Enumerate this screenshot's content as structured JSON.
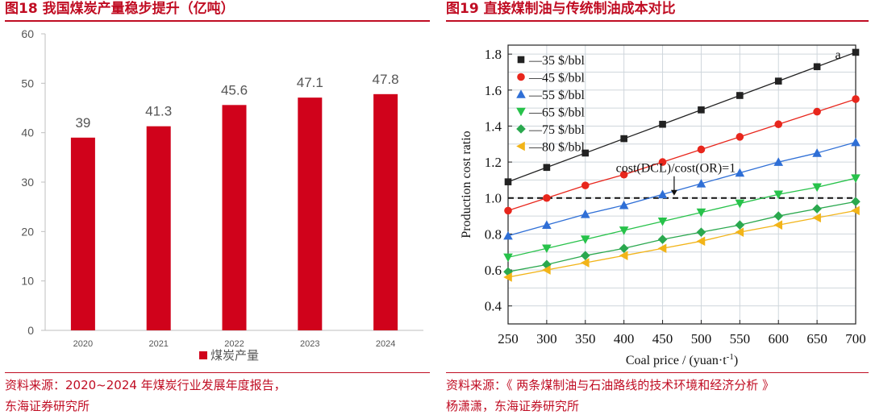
{
  "left_figure": {
    "title": "图18 我国煤炭产量稳步提升（亿吨）",
    "source_line1": "资料来源：2020~2024 年煤炭行业发展年度报告，",
    "source_line2": "东海证券研究所"
  },
  "right_figure": {
    "title": "图19 直接煤制油与传统制油成本对比",
    "source_line1": "资料来源：《 两条煤制油与石油路线的技术环境和经济分析 》",
    "source_line2": "杨潇潇，东海证券研究所"
  },
  "colors": {
    "accent": "#c00d23",
    "bar": "#d0021b"
  },
  "chart_data": [
    {
      "type": "bar",
      "title": "我国煤炭产量稳步提升（亿吨）",
      "categories": [
        "2020",
        "2021",
        "2022",
        "2023",
        "2024"
      ],
      "values": [
        39,
        41.3,
        45.6,
        47.1,
        47.8
      ],
      "value_labels": [
        "39",
        "41.3",
        "45.6",
        "47.1",
        "47.8"
      ],
      "series_name": "煤炭产量",
      "ylim": [
        0,
        60
      ],
      "yticks": [
        0,
        10,
        20,
        30,
        40,
        50,
        60
      ],
      "legend_position": "bottom",
      "grid": false
    },
    {
      "type": "line",
      "title": "直接煤制油与传统制油成本对比",
      "xlabel": "Coal price / (yuan·t",
      "xlabel_sup": "-1",
      "xlabel_close": ")",
      "ylabel": "Production cost ratio",
      "xlim": [
        250,
        700
      ],
      "ylim": [
        0.3,
        1.85
      ],
      "xticks": [
        250,
        300,
        350,
        400,
        450,
        500,
        550,
        600,
        650,
        700
      ],
      "yticks": [
        0.4,
        0.6,
        0.8,
        1.0,
        1.2,
        1.4,
        1.6,
        1.8
      ],
      "ytick_labels": [
        "0.4",
        "0.6",
        "0.8",
        "1.0",
        "1.2",
        "1.4",
        "1.6",
        "1.8"
      ],
      "grid": true,
      "panel_label": "a",
      "reference_line": {
        "y": 1.0,
        "style": "dashed"
      },
      "annotation": {
        "text": "cost(DCL)/cost(OR)=1",
        "x": 465,
        "y": 1.0
      },
      "legend_position": "top-left",
      "x": [
        250,
        300,
        350,
        400,
        450,
        500,
        550,
        600,
        650,
        700
      ],
      "series": [
        {
          "name": "—35 $/bbl",
          "marker": "square",
          "color": "#222222",
          "values": [
            1.09,
            1.17,
            1.25,
            1.33,
            1.41,
            1.49,
            1.57,
            1.65,
            1.73,
            1.81
          ]
        },
        {
          "name": "—45 $/bbl",
          "marker": "circle",
          "color": "#e8261c",
          "values": [
            0.93,
            1.0,
            1.07,
            1.13,
            1.2,
            1.27,
            1.34,
            1.41,
            1.48,
            1.55
          ]
        },
        {
          "name": "—55 $/bbl",
          "marker": "triangle-up",
          "color": "#2f6fd6",
          "values": [
            0.79,
            0.85,
            0.91,
            0.96,
            1.02,
            1.08,
            1.14,
            1.2,
            1.25,
            1.31
          ]
        },
        {
          "name": "—65 $/bbl",
          "marker": "triangle-down",
          "color": "#27c24a",
          "values": [
            0.67,
            0.72,
            0.77,
            0.82,
            0.87,
            0.92,
            0.97,
            1.02,
            1.06,
            1.11
          ]
        },
        {
          "name": "—75 $/bbl",
          "marker": "diamond",
          "color": "#2aa84e",
          "values": [
            0.59,
            0.63,
            0.68,
            0.72,
            0.77,
            0.81,
            0.85,
            0.9,
            0.94,
            0.98
          ]
        },
        {
          "name": "—80 $/bbl",
          "marker": "triangle-left",
          "color": "#f2b418",
          "values": [
            0.56,
            0.6,
            0.64,
            0.68,
            0.72,
            0.76,
            0.81,
            0.85,
            0.89,
            0.93
          ]
        }
      ]
    }
  ]
}
